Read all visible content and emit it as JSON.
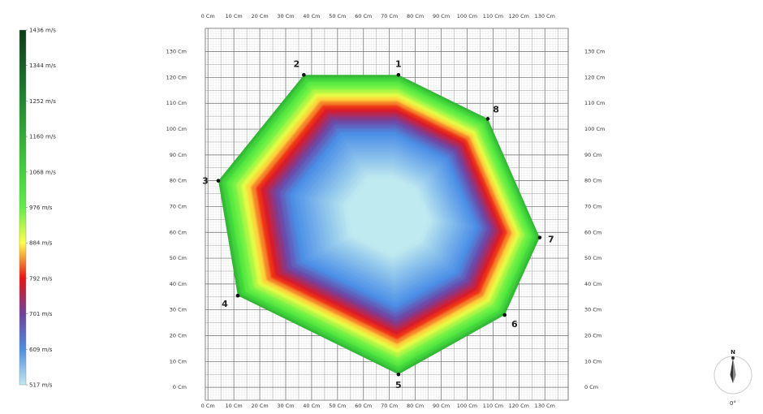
{
  "chart_data": {
    "type": "heatmap",
    "description_units": "Cm",
    "x_ticks": [
      "0 Cm",
      "10 Cm",
      "20 Cm",
      "30 Cm",
      "40 Cm",
      "50 Cm",
      "60 Cm",
      "70 Cm",
      "80 Cm",
      "90 Cm",
      "100 Cm",
      "110 Cm",
      "120 Cm",
      "130 Cm"
    ],
    "y_ticks": [
      "0 Cm",
      "10 Cm",
      "20 Cm",
      "30 Cm",
      "40 Cm",
      "50 Cm",
      "60 Cm",
      "70 Cm",
      "80 Cm",
      "90 Cm",
      "100 Cm",
      "110 Cm",
      "120 Cm",
      "130 Cm"
    ],
    "xlim": [
      -1,
      139
    ],
    "ylim": [
      -5,
      139
    ],
    "grid": true,
    "legend": {
      "placement": "left",
      "labels": [
        "1436 m/s",
        "1344 m/s",
        "1252 m/s",
        "1160 m/s",
        "1068 m/s",
        "976 m/s",
        "884 m/s",
        "792 m/s",
        "701 m/s",
        "609 m/s",
        "517 m/s"
      ],
      "values": [
        1436,
        1344,
        1252,
        1160,
        1068,
        976,
        884,
        792,
        701,
        609,
        517
      ],
      "colors": [
        "#0a3d12",
        "#15602a",
        "#1f8a2e",
        "#2fae33",
        "#3fd43a",
        "#5ef044",
        "#ffff44",
        "#ee1111",
        "#7040a0",
        "#4a8ee6",
        "#bfeaf0"
      ]
    },
    "sensors": [
      {
        "label": "1",
        "x": 73.5,
        "y": 121
      },
      {
        "label": "2",
        "x": 37,
        "y": 121
      },
      {
        "label": "3",
        "x": 4,
        "y": 80
      },
      {
        "label": "4",
        "x": 11.5,
        "y": 35.5
      },
      {
        "label": "5",
        "x": 73.5,
        "y": 5
      },
      {
        "label": "6",
        "x": 114.5,
        "y": 28
      },
      {
        "label": "7",
        "x": 128,
        "y": 58
      },
      {
        "label": "8",
        "x": 108,
        "y": 104
      }
    ]
  },
  "compass": {
    "north_label": "N",
    "angle_label": "0°"
  }
}
